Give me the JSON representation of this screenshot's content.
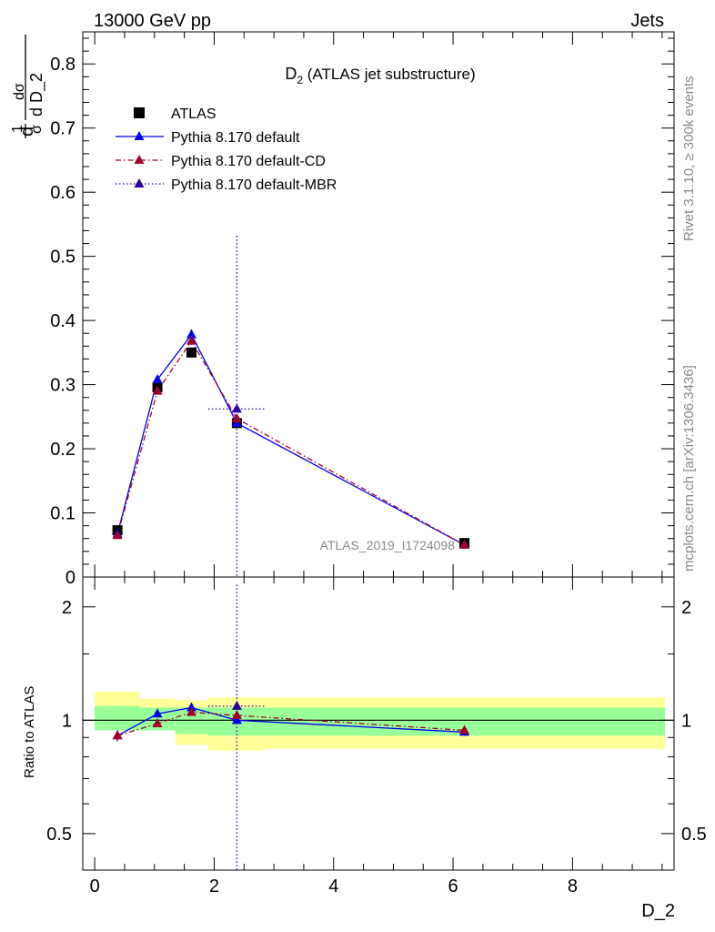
{
  "header": {
    "left": "13000 GeV pp",
    "right": "Jets"
  },
  "side_labels": {
    "rivet": "Rivet 3.1.10, ≥ 300k events",
    "mcplots": "mcplots.cern.ch [arXiv:1306.3436]"
  },
  "watermark": "ATLAS_2019_I1724098",
  "chart_data": [
    {
      "type": "line",
      "panel": "main",
      "title_main": "D",
      "title_sub": "2",
      "title_rest": " (ATLAS jet substructure)",
      "ylabel": "1/σ dσ/d D_2",
      "xlabel": "D_2",
      "xlim": [
        -0.2,
        9.7
      ],
      "ylim": [
        0,
        0.85
      ],
      "yticks": [
        0,
        0.1,
        0.2,
        0.3,
        0.4,
        0.5,
        0.6,
        0.7,
        0.8
      ],
      "ytick_labels": [
        "0",
        "0.1",
        "0.2",
        "0.3",
        "0.4",
        "0.5",
        "0.6",
        "0.7",
        "0.8"
      ],
      "log_y": false,
      "legend_position": "top-left",
      "x": [
        0.38,
        1.05,
        1.62,
        2.38,
        6.19
      ],
      "x_bins": [
        [
          0,
          0.75
        ],
        [
          0.75,
          1.35
        ],
        [
          1.35,
          1.9
        ],
        [
          1.9,
          2.85
        ],
        [
          2.85,
          9.55
        ]
      ],
      "series": [
        {
          "name": "ATLAS",
          "color": "#000000",
          "marker": "square",
          "values": [
            0.073,
            0.296,
            0.35,
            0.24,
            0.053
          ]
        },
        {
          "name": "Pythia 8.170 default",
          "color": "#0000ee",
          "marker": "triangle",
          "line": "solid",
          "values": [
            0.067,
            0.308,
            0.378,
            0.24,
            0.05
          ],
          "errors": [
            0.004,
            0.006,
            0.008,
            0.004,
            0.002
          ]
        },
        {
          "name": "Pythia 8.170 default-CD",
          "color": "#a0002a",
          "marker": "triangle",
          "line": "dashdot",
          "values": [
            0.065,
            0.29,
            0.368,
            0.247,
            0.05
          ],
          "errors": [
            0.003,
            0.005,
            0.006,
            0.004,
            0.002
          ]
        },
        {
          "name": "Pythia 8.170 default-MBR",
          "color": "#2a00a0",
          "marker": "triangle",
          "line": "dotted",
          "values": [
            null,
            null,
            null,
            0.262,
            null
          ],
          "errors": [
            null,
            null,
            null,
            0.27,
            null
          ]
        }
      ]
    },
    {
      "type": "line",
      "panel": "ratio",
      "ylabel": "Ratio to ATLAS",
      "xlabel": "D_2",
      "xlim": [
        -0.2,
        9.7
      ],
      "ylim": [
        0.4,
        2.4
      ],
      "log_y": true,
      "yticks": [
        0.5,
        1,
        2
      ],
      "ytick_labels": [
        "0.5",
        "1",
        "2"
      ],
      "xticks": [
        0,
        2,
        4,
        6,
        8
      ],
      "xtick_labels": [
        "0",
        "2",
        "4",
        "6",
        "8"
      ],
      "x": [
        0.38,
        1.05,
        1.62,
        2.38,
        6.19
      ],
      "bands": {
        "x_bins": [
          [
            0,
            0.75
          ],
          [
            0.75,
            1.35
          ],
          [
            1.35,
            1.9
          ],
          [
            1.9,
            2.85
          ],
          [
            2.85,
            9.55
          ]
        ],
        "inner": [
          [
            0.94,
            1.09
          ],
          [
            0.94,
            1.08
          ],
          [
            0.92,
            1.08
          ],
          [
            0.91,
            1.08
          ],
          [
            0.91,
            1.08
          ]
        ],
        "outer": [
          [
            0.96,
            1.19
          ],
          [
            0.95,
            1.14
          ],
          [
            0.86,
            1.13
          ],
          [
            0.83,
            1.15
          ],
          [
            0.84,
            1.15
          ]
        ],
        "inner_color": "#99ff99",
        "outer_color": "#ffff99"
      },
      "series": [
        {
          "name": "Pythia 8.170 default",
          "color": "#0000ee",
          "line": "solid",
          "values": [
            0.91,
            1.04,
            1.08,
            1.0,
            0.93
          ],
          "errors": [
            0.03,
            0.01,
            0.02,
            0.01,
            0.01
          ]
        },
        {
          "name": "Pythia 8.170 default-CD",
          "color": "#a0002a",
          "line": "dashdot",
          "values": [
            0.91,
            0.98,
            1.05,
            1.03,
            0.94
          ],
          "errors": [
            0.03,
            0.01,
            0.02,
            0.01,
            0.01
          ]
        },
        {
          "name": "Pythia 8.170 default-MBR",
          "color": "#2a00a0",
          "line": "dotted",
          "values": [
            null,
            null,
            null,
            1.09,
            null
          ],
          "errors": [
            null,
            null,
            null,
            1.2,
            null
          ]
        }
      ]
    }
  ]
}
